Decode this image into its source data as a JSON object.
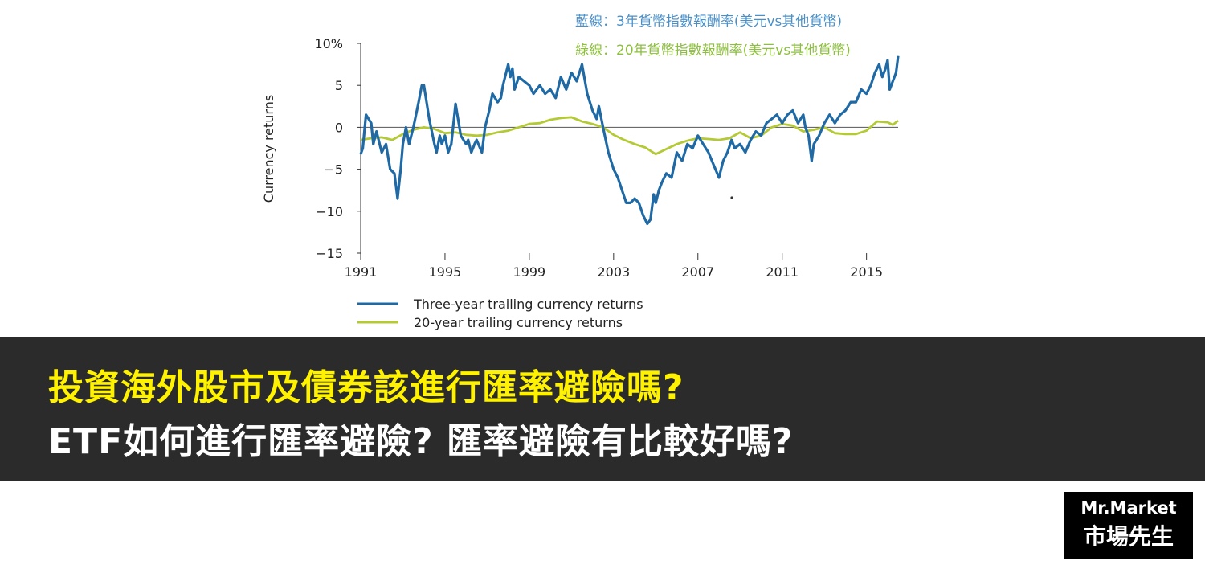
{
  "annotations": {
    "blue": "藍線：3年貨幣指數報酬率(美元vs其他貨幣)",
    "green": "綠線：20年貨幣指數報酬率(美元vs其他貨幣)"
  },
  "headline": {
    "line1": "投資海外股市及債券該進行匯率避險嗎?",
    "line2": "ETF如何進行匯率避險?  匯率避險有比較好嗎?"
  },
  "logo": {
    "en": "Mr.Market",
    "zh": "市場先生"
  },
  "colors": {
    "series_blue": "#1f6aa5",
    "series_green": "#b5c934",
    "banner": "#2b2b2b",
    "headline_yellow": "#fff200"
  },
  "chart_data": {
    "type": "line",
    "ylabel": "Currency returns",
    "xlabel": "",
    "ylim": [
      -15,
      10
    ],
    "xlim": [
      1991,
      1991,
      2016.5
    ],
    "yticks": [
      {
        "v": 10,
        "label": "10%"
      },
      {
        "v": 5,
        "label": "5"
      },
      {
        "v": 0,
        "label": "0"
      },
      {
        "v": -5,
        "label": "−5"
      },
      {
        "v": -10,
        "label": "−10"
      },
      {
        "v": -15,
        "label": "−15"
      }
    ],
    "xticks": [
      {
        "v": 1991,
        "label": "1991"
      },
      {
        "v": 1995,
        "label": "1995"
      },
      {
        "v": 1999,
        "label": "1999"
      },
      {
        "v": 2003,
        "label": "2003"
      },
      {
        "v": 2007,
        "label": "2007"
      },
      {
        "v": 2011,
        "label": "2011"
      },
      {
        "v": 2015,
        "label": "2015"
      }
    ],
    "legend": "bottom-left",
    "series": [
      {
        "name": "Three-year trailing currency returns",
        "x": [
          1991.0,
          1991.1,
          1991.25,
          1991.5,
          1991.6,
          1991.75,
          1992.0,
          1992.2,
          1992.4,
          1992.6,
          1992.75,
          1992.9,
          1993.0,
          1993.15,
          1993.3,
          1993.5,
          1993.75,
          1993.9,
          1994.0,
          1994.25,
          1994.5,
          1994.6,
          1994.75,
          1994.85,
          1995.0,
          1995.15,
          1995.3,
          1995.5,
          1995.75,
          1996.0,
          1996.1,
          1996.25,
          1996.4,
          1996.5,
          1996.75,
          1996.9,
          1997.1,
          1997.25,
          1997.5,
          1997.65,
          1997.75,
          1998.0,
          1998.1,
          1998.2,
          1998.3,
          1998.5,
          1998.75,
          1999.0,
          1999.2,
          1999.5,
          1999.75,
          2000.0,
          2000.25,
          2000.5,
          2000.75,
          2001.0,
          2001.25,
          2001.5,
          2001.75,
          2002.0,
          2002.2,
          2002.3,
          2002.5,
          2002.75,
          2003.0,
          2003.2,
          2003.4,
          2003.6,
          2003.8,
          2004.0,
          2004.2,
          2004.4,
          2004.6,
          2004.75,
          2004.9,
          2005.0,
          2005.15,
          2005.3,
          2005.5,
          2005.75,
          2006.0,
          2006.25,
          2006.5,
          2006.75,
          2007.0,
          2007.25,
          2007.5,
          2007.75,
          2008.0,
          2008.2,
          2008.4,
          2008.6,
          2008.75,
          2009.0,
          2009.25,
          2009.5,
          2009.75,
          2010.0,
          2010.25,
          2010.5,
          2010.75,
          2011.0,
          2011.25,
          2011.5,
          2011.75,
          2012.0,
          2012.1,
          2012.25,
          2012.4,
          2012.5,
          2012.75,
          2013.0,
          2013.25,
          2013.5,
          2013.75,
          2014.0,
          2014.25,
          2014.5,
          2014.75,
          2015.0,
          2015.2,
          2015.4,
          2015.6,
          2015.75,
          2015.9,
          2016.0,
          2016.1,
          2016.25,
          2016.4,
          2016.5
        ],
        "values": [
          -3.2,
          -2.5,
          1.5,
          0.5,
          -2,
          -0.5,
          -3,
          -2,
          -5,
          -5.5,
          -8.5,
          -5,
          -2,
          0,
          -2,
          0,
          3,
          5,
          5,
          1,
          -2,
          -3,
          -1,
          -2,
          -1,
          -3,
          -2,
          2.8,
          -1,
          -2,
          -1.5,
          -3,
          -2,
          -1.5,
          -3,
          0,
          2,
          4,
          3,
          3.5,
          5,
          7.5,
          6,
          7,
          4.5,
          6,
          5.5,
          5,
          4,
          5,
          4,
          4.5,
          3.5,
          6,
          4.5,
          6.5,
          5.5,
          7.5,
          4,
          2,
          1,
          2.5,
          0,
          -3,
          -5,
          -6,
          -7.5,
          -9,
          -9,
          -8.5,
          -9,
          -10.5,
          -11.5,
          -11,
          -8,
          -9,
          -7.5,
          -6.5,
          -5.5,
          -6,
          -3,
          -4,
          -2,
          -2.5,
          -1,
          -2,
          -3,
          -4.5,
          -6,
          -4,
          -3,
          -1.5,
          -2.5,
          -2,
          -3,
          -1.5,
          -0.5,
          -1,
          0.5,
          1,
          1.5,
          0.5,
          1.5,
          2,
          0.5,
          1.5,
          0,
          -1,
          -4,
          -2,
          -1,
          0.5,
          1.5,
          0.5,
          1.5,
          2,
          3,
          3,
          4.5,
          4,
          5,
          6.5,
          7.5,
          6,
          7,
          8,
          4.5,
          5.5,
          6.5,
          8.5
        ]
      },
      {
        "name": "20-year trailing currency returns",
        "x": [
          1991.0,
          1991.5,
          1992.0,
          1992.5,
          1993.0,
          1993.5,
          1994.0,
          1994.5,
          1995.0,
          1995.5,
          1996.0,
          1996.5,
          1997.0,
          1997.5,
          1998.0,
          1998.5,
          1999.0,
          1999.5,
          2000.0,
          2000.5,
          2001.0,
          2001.5,
          2002.0,
          2002.5,
          2003.0,
          2003.5,
          2004.0,
          2004.5,
          2005.0,
          2005.5,
          2006.0,
          2006.5,
          2007.0,
          2007.5,
          2008.0,
          2008.5,
          2009.0,
          2009.5,
          2010.0,
          2010.5,
          2011.0,
          2011.5,
          2012.0,
          2012.5,
          2013.0,
          2013.5,
          2014.0,
          2014.5,
          2015.0,
          2015.5,
          2016.0,
          2016.25,
          2016.5
        ],
        "values": [
          -1.5,
          -1.3,
          -1.2,
          -1.5,
          -0.8,
          -0.3,
          0,
          -0.2,
          -0.7,
          -0.6,
          -0.9,
          -1,
          -0.9,
          -0.6,
          -0.4,
          0,
          0.4,
          0.5,
          0.9,
          1.1,
          1.2,
          0.7,
          0.4,
          0,
          -0.9,
          -1.5,
          -2,
          -2.4,
          -3.2,
          -2.6,
          -2,
          -1.6,
          -1.3,
          -1.4,
          -1.5,
          -1.3,
          -0.6,
          -1.3,
          -1,
          0,
          0.4,
          0.2,
          -0.5,
          -0.3,
          0,
          -0.7,
          -0.8,
          -0.8,
          -0.4,
          0.7,
          0.6,
          0.3,
          0.8
        ]
      }
    ]
  }
}
